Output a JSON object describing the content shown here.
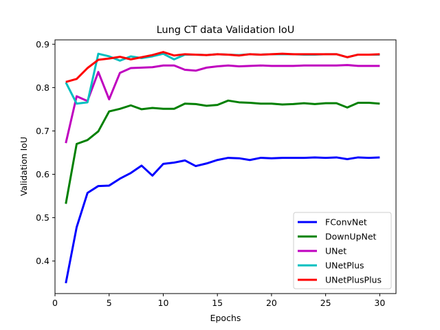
{
  "chart_data": {
    "type": "line",
    "title": "Lung CT data Validation IoU",
    "xlabel": "Epochs",
    "ylabel": "Validation IoU",
    "xlim": [
      0,
      31.5
    ],
    "ylim": [
      0.325,
      0.91
    ],
    "xticks": [
      0,
      5,
      10,
      15,
      20,
      25,
      30
    ],
    "yticks": [
      0.4,
      0.5,
      0.6,
      0.7,
      0.8,
      0.9
    ],
    "ytick_labels": [
      "0.4",
      "0.5",
      "0.6",
      "0.7",
      "0.8",
      "0.9"
    ],
    "grid": false,
    "legend_position": "lower-right",
    "x": [
      1,
      2,
      3,
      4,
      5,
      6,
      7,
      8,
      9,
      10,
      11,
      12,
      13,
      14,
      15,
      16,
      17,
      18,
      19,
      20,
      21,
      22,
      23,
      24,
      25,
      26,
      27,
      28,
      29,
      30
    ],
    "series": [
      {
        "name": "FConvNet",
        "color": "#0000ff",
        "values": [
          0.349,
          0.478,
          0.557,
          0.573,
          0.574,
          0.59,
          0.603,
          0.62,
          0.597,
          0.624,
          0.627,
          0.632,
          0.619,
          0.625,
          0.633,
          0.638,
          0.637,
          0.633,
          0.638,
          0.637,
          0.638,
          0.638,
          0.638,
          0.639,
          0.638,
          0.639,
          0.635,
          0.639,
          0.638,
          0.639
        ]
      },
      {
        "name": "DownUpNet",
        "color": "#008000",
        "values": [
          0.532,
          0.67,
          0.679,
          0.699,
          0.745,
          0.751,
          0.759,
          0.75,
          0.753,
          0.751,
          0.751,
          0.763,
          0.762,
          0.758,
          0.76,
          0.77,
          0.766,
          0.765,
          0.763,
          0.763,
          0.761,
          0.762,
          0.764,
          0.762,
          0.764,
          0.764,
          0.754,
          0.765,
          0.765,
          0.763
        ]
      },
      {
        "name": "UNet",
        "color": "#bf00bf",
        "values": [
          0.672,
          0.78,
          0.769,
          0.836,
          0.773,
          0.834,
          0.845,
          0.846,
          0.847,
          0.851,
          0.851,
          0.841,
          0.839,
          0.846,
          0.849,
          0.851,
          0.849,
          0.85,
          0.851,
          0.85,
          0.85,
          0.85,
          0.851,
          0.851,
          0.851,
          0.851,
          0.852,
          0.85,
          0.85,
          0.85
        ]
      },
      {
        "name": "UNetPlus",
        "color": "#00bfbf",
        "values": [
          0.812,
          0.763,
          0.766,
          0.878,
          0.872,
          0.862,
          0.872,
          0.868,
          0.872,
          0.878,
          0.865,
          0.876,
          0.876,
          0.875,
          0.877,
          0.876,
          0.875,
          0.877,
          0.876,
          0.877,
          0.877,
          0.877,
          0.876,
          0.876,
          0.877,
          0.877,
          0.87,
          0.876,
          0.876,
          0.876
        ]
      },
      {
        "name": "UNetPlusPlus",
        "color": "#ff0000",
        "values": [
          0.813,
          0.82,
          0.845,
          0.864,
          0.867,
          0.871,
          0.865,
          0.87,
          0.875,
          0.882,
          0.874,
          0.877,
          0.876,
          0.875,
          0.877,
          0.876,
          0.874,
          0.877,
          0.876,
          0.877,
          0.878,
          0.877,
          0.877,
          0.877,
          0.877,
          0.877,
          0.87,
          0.876,
          0.876,
          0.877
        ]
      }
    ]
  }
}
